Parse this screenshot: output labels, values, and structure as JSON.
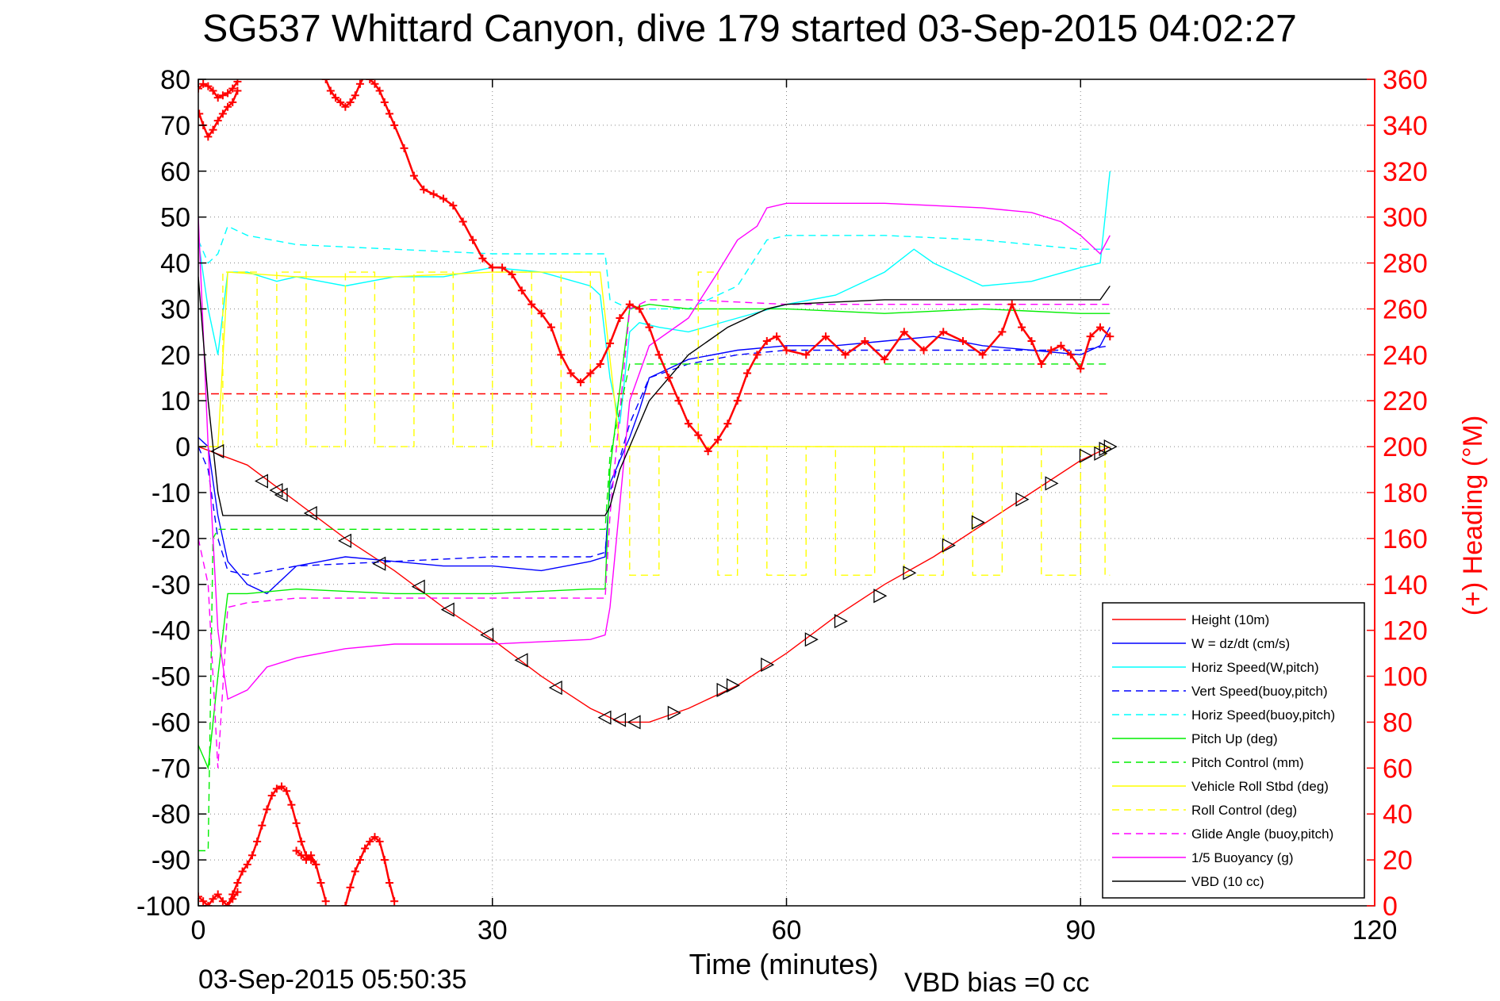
{
  "chart_data": {
    "type": "line",
    "title": "SG537 Whittard Canyon, dive 179 started 03-Sep-2015 04:02:27",
    "xlabel": "Time (minutes)",
    "ylabel": "",
    "y2label": "(+) Heading (°M)",
    "xlim": [
      0,
      120
    ],
    "ylim": [
      -100,
      80
    ],
    "y2lim": [
      0,
      360
    ],
    "xticks": [
      0,
      30,
      60,
      90,
      120
    ],
    "yticks": [
      80,
      70,
      60,
      50,
      40,
      30,
      20,
      10,
      0,
      -10,
      -20,
      -30,
      -40,
      -50,
      -60,
      -70,
      -80,
      -90,
      -100
    ],
    "y2ticks": [
      360,
      340,
      320,
      300,
      280,
      260,
      240,
      220,
      200,
      180,
      160,
      140,
      120,
      100,
      80,
      60,
      40,
      20,
      0
    ],
    "grid": true,
    "legend_position": "bottom-right",
    "footer_left": "03-Sep-2015 05:50:35",
    "footer_right": "VBD bias =0 cc",
    "colors": {
      "red": "#ff0000",
      "blue": "#0000ff",
      "cyan": "#00ffff",
      "green": "#00ee00",
      "yellow": "#ffff00",
      "magenta": "#ff00ff",
      "black": "#000000"
    },
    "series": [
      {
        "name": "Height (10m)",
        "color": "#ff0000",
        "dash": false,
        "x": [
          0,
          5,
          10,
          15,
          20,
          25,
          30,
          35,
          40,
          43,
          46,
          50,
          55,
          60,
          65,
          70,
          75,
          80,
          85,
          90,
          93
        ],
        "y": [
          0,
          -4,
          -12,
          -20,
          -27,
          -35,
          -42,
          -50,
          -57,
          -60,
          -60,
          -57,
          -52,
          -45,
          -37,
          -30,
          -24,
          -17,
          -10,
          -3,
          0
        ]
      },
      {
        "name": "W = dz/dt (cm/s)",
        "color": "#0000ff",
        "dash": false,
        "x": [
          0,
          1,
          2,
          3,
          5,
          7,
          10,
          15,
          20,
          25,
          30,
          35,
          40,
          41.5,
          42,
          43,
          44,
          45,
          46,
          48,
          50,
          55,
          60,
          65,
          70,
          75,
          80,
          85,
          90,
          92,
          93
        ],
        "y": [
          2,
          0,
          -15,
          -25,
          -30,
          -32,
          -26,
          -24,
          -25,
          -26,
          -26,
          -27,
          -25,
          -24,
          -8,
          -3,
          2,
          8,
          15,
          17,
          19,
          21,
          22,
          22,
          23,
          24,
          22,
          21,
          20,
          22,
          26
        ]
      },
      {
        "name": "Horiz Speed(W,pitch)",
        "color": "#00ffff",
        "dash": false,
        "x": [
          0,
          1,
          2,
          3,
          5,
          8,
          10,
          15,
          20,
          25,
          30,
          35,
          40,
          41,
          42,
          43,
          44,
          45,
          47,
          50,
          55,
          60,
          65,
          70,
          73,
          75,
          80,
          85,
          90,
          92,
          93
        ],
        "y": [
          45,
          30,
          20,
          38,
          38,
          36,
          37,
          35,
          37,
          37,
          39,
          38,
          35,
          33,
          15,
          5,
          25,
          27,
          26,
          25,
          28,
          31,
          33,
          38,
          43,
          40,
          35,
          36,
          39,
          40,
          60
        ]
      },
      {
        "name": "Vert Speed(buoy,pitch)",
        "color": "#0000ff",
        "dash": true,
        "x": [
          0,
          1,
          2,
          3,
          5,
          10,
          20,
          30,
          40,
          41.5,
          42,
          44,
          46,
          50,
          55,
          60,
          70,
          80,
          90,
          93
        ],
        "y": [
          0,
          -5,
          -20,
          -27,
          -28,
          -26,
          -25,
          -24,
          -24,
          -23,
          -10,
          5,
          15,
          18,
          20,
          21,
          21,
          21,
          21,
          22
        ]
      },
      {
        "name": "Horiz Speed(buoy,pitch)",
        "color": "#00ffff",
        "dash": true,
        "x": [
          0,
          1,
          2,
          3,
          5,
          10,
          20,
          30,
          40,
          41.5,
          42,
          44,
          46,
          50,
          55,
          58,
          60,
          70,
          80,
          85,
          90,
          93
        ],
        "y": [
          45,
          40,
          42,
          48,
          46,
          44,
          43,
          42,
          42,
          42,
          32,
          30,
          30,
          30,
          35,
          45,
          46,
          46,
          45,
          44,
          43,
          43
        ]
      },
      {
        "name": "Pitch Up (deg)",
        "color": "#00ee00",
        "dash": false,
        "x": [
          0,
          1,
          2,
          3,
          5,
          10,
          20,
          30,
          40,
          41.5,
          42,
          44,
          46,
          50,
          55,
          60,
          70,
          80,
          90,
          93
        ],
        "y": [
          -65,
          -70,
          -50,
          -32,
          -32,
          -31,
          -32,
          -32,
          -31,
          -31,
          -5,
          30,
          31,
          30,
          30,
          30,
          29,
          30,
          29,
          29
        ]
      },
      {
        "name": "Pitch Control (mm)",
        "color": "#00ee00",
        "dash": true,
        "x": [
          0,
          1,
          1.5,
          2,
          3,
          5,
          10,
          20,
          30,
          40,
          41.5,
          42,
          44,
          46,
          50,
          60,
          70,
          80,
          90,
          93
        ],
        "y": [
          -88,
          -88,
          -20,
          -18,
          -18,
          -18,
          -18,
          -18,
          -18,
          -18,
          -18,
          -2,
          18,
          18,
          18,
          18,
          18,
          18,
          18,
          18
        ]
      },
      {
        "name": "Vehicle Roll Stbd (deg)",
        "color": "#ffff00",
        "dash": false,
        "x": [
          0,
          2,
          3,
          10,
          20,
          30,
          40,
          41,
          43,
          44,
          45,
          50,
          60,
          70,
          80,
          90,
          93
        ],
        "y": [
          0,
          0,
          38,
          37,
          37,
          38,
          38,
          38,
          0,
          0,
          0,
          0,
          0,
          0,
          0,
          0,
          0
        ]
      },
      {
        "name": "Roll Control (deg)",
        "color": "#ffff00",
        "dash": true,
        "x": [
          0,
          2.5,
          2.5,
          6,
          6,
          8,
          8,
          11,
          11,
          15,
          15,
          18,
          18,
          22,
          22,
          26,
          26,
          30,
          30,
          34,
          34,
          37,
          37,
          40,
          40,
          41.5,
          41.5,
          44,
          44,
          47,
          47,
          51,
          51,
          53,
          53,
          55,
          55,
          58,
          58,
          62,
          62,
          65,
          65,
          69,
          69,
          72,
          72,
          76,
          76,
          79,
          79,
          82,
          82,
          86,
          86,
          90,
          90,
          92.5,
          92.5,
          93
        ],
        "y": [
          0,
          0,
          38,
          38,
          0,
          0,
          38,
          38,
          0,
          0,
          38,
          38,
          0,
          0,
          38,
          38,
          0,
          0,
          38,
          38,
          0,
          0,
          38,
          38,
          0,
          0,
          0,
          0,
          -28,
          -28,
          0,
          0,
          38,
          38,
          -28,
          -28,
          0,
          0,
          -28,
          -28,
          0,
          0,
          -28,
          -28,
          0,
          0,
          -28,
          -28,
          0,
          0,
          -28,
          -28,
          0,
          0,
          -28,
          -28,
          0,
          0,
          -28,
          -28
        ]
      },
      {
        "name": "Glide Angle (buoy,pitch)",
        "color": "#ff00ff",
        "dash": true,
        "x": [
          0,
          1,
          2,
          3,
          5,
          10,
          20,
          30,
          40,
          41.5,
          42,
          44,
          46,
          50,
          60,
          70,
          80,
          90,
          93
        ],
        "y": [
          -20,
          -30,
          -70,
          -35,
          -34,
          -33,
          -33,
          -33,
          -33,
          -33,
          -15,
          30,
          32,
          32,
          31,
          31,
          31,
          31,
          31
        ]
      },
      {
        "name": "1/5 Buoyancy (g)",
        "color": "#ff00ff",
        "dash": false,
        "x": [
          0,
          1,
          2,
          3,
          5,
          7,
          10,
          15,
          20,
          30,
          40,
          41.5,
          42,
          44,
          46,
          50,
          53,
          55,
          57,
          58,
          60,
          65,
          70,
          80,
          85,
          88,
          90,
          92,
          93
        ],
        "y": [
          50,
          0,
          -40,
          -55,
          -53,
          -48,
          -46,
          -44,
          -43,
          -43,
          -42,
          -41,
          -35,
          10,
          22,
          28,
          38,
          45,
          48,
          52,
          53,
          53,
          53,
          52,
          51,
          49,
          46,
          42,
          46
        ]
      },
      {
        "name": "VBD (10 cc)",
        "color": "#000000",
        "dash": false,
        "x": [
          0,
          1,
          2,
          2.5,
          3,
          41.5,
          42,
          43,
          44,
          46,
          48,
          50,
          52,
          54,
          56,
          58,
          60,
          70,
          80,
          90,
          92,
          93
        ],
        "y": [
          37,
          10,
          -10,
          -15,
          -15,
          -15,
          -13,
          -5,
          0,
          10,
          15,
          20,
          23,
          26,
          28,
          30,
          31,
          32,
          32,
          32,
          32,
          35
        ]
      }
    ],
    "heading": {
      "name": "(+) Heading",
      "axis": "right",
      "color": "#ff0000",
      "marker": "+",
      "segments": [
        {
          "x": [
            0,
            0.5,
            1,
            1.5,
            2,
            2.5,
            3,
            3.5,
            4
          ],
          "y": [
            356,
            358,
            357,
            355,
            352,
            353,
            354,
            356,
            359
          ]
        },
        {
          "x": [
            0.1,
            0.5,
            1,
            1.5,
            2,
            2.5,
            3,
            3.5,
            4
          ],
          "y": [
            345,
            340,
            335,
            338,
            342,
            345,
            348,
            350,
            355
          ]
        },
        {
          "x": [
            13,
            13.5,
            14,
            14.5,
            15,
            15.5,
            16,
            16.5,
            17,
            17.5,
            18,
            18.5,
            19,
            19.5,
            20,
            21,
            22,
            23,
            24,
            25,
            26,
            27,
            28,
            29,
            30,
            31,
            32,
            33,
            34,
            35,
            36,
            37,
            38,
            39,
            40,
            41,
            42,
            43,
            44,
            45,
            46,
            47,
            48,
            49,
            50,
            51,
            52,
            53,
            54,
            55,
            56,
            57,
            58,
            59,
            60,
            62,
            64,
            66,
            68,
            70,
            72,
            74,
            76,
            78,
            80,
            82,
            83,
            84,
            85,
            86,
            87,
            88,
            89,
            90,
            91,
            92,
            93
          ],
          "y": [
            360,
            355,
            352,
            350,
            348,
            350,
            353,
            358,
            362,
            360,
            358,
            355,
            350,
            345,
            340,
            330,
            318,
            312,
            310,
            308,
            305,
            298,
            290,
            282,
            278,
            278,
            275,
            268,
            262,
            258,
            252,
            240,
            232,
            228,
            232,
            236,
            245,
            256,
            262,
            260,
            252,
            240,
            230,
            220,
            210,
            205,
            198,
            203,
            210,
            220,
            232,
            240,
            246,
            248,
            242,
            240,
            248,
            240,
            246,
            238,
            250,
            242,
            250,
            246,
            240,
            250,
            262,
            252,
            246,
            236,
            242,
            244,
            240,
            234,
            248,
            252,
            248
          ]
        },
        {
          "x": [
            0,
            0.5,
            1,
            1.5,
            2,
            2.5,
            3,
            3.5,
            4
          ],
          "y": [
            4,
            2,
            0,
            3,
            5,
            2,
            0,
            3,
            6
          ]
        },
        {
          "x": [
            3,
            3.5,
            4,
            4.5,
            5,
            5.5,
            6,
            6.5,
            7,
            7.5,
            8,
            8.5,
            9,
            9.5,
            10,
            10.5,
            11,
            11.5,
            12
          ],
          "y": [
            0,
            5,
            10,
            15,
            18,
            22,
            28,
            35,
            42,
            48,
            51,
            52,
            50,
            44,
            36,
            28,
            22,
            20,
            18
          ]
        },
        {
          "x": [
            10,
            10.5,
            11,
            11.5,
            12,
            12.5,
            13
          ],
          "y": [
            24,
            22,
            20,
            22,
            18,
            10,
            2
          ]
        },
        {
          "x": [
            15,
            15.5,
            16,
            16.5,
            17,
            17.5,
            18,
            18.5,
            19,
            19.5,
            20
          ],
          "y": [
            0,
            8,
            15,
            20,
            25,
            28,
            30,
            28,
            20,
            10,
            2
          ]
        }
      ]
    },
    "dive_markers": {
      "x": [
        2,
        6.5,
        8,
        8.5,
        11.5,
        15,
        18.5,
        22.5,
        25.5,
        29.5,
        33,
        36.5,
        41.5,
        43,
        44.5,
        48.5,
        53.5,
        54.5,
        58,
        62.5,
        65.5,
        69.5,
        72.5,
        76.5,
        79.5,
        84,
        87,
        90.5,
        92,
        92.5,
        93
      ],
      "y": [
        -1,
        -7.5,
        -9.5,
        -10.5,
        -14.5,
        -20.5,
        -25.5,
        -30.5,
        -35.5,
        -41,
        -46.5,
        -52.5,
        -59,
        -59.5,
        -60,
        -58,
        -53,
        -52,
        -47.5,
        -42,
        -38,
        -32.5,
        -27.5,
        -21.5,
        -16.5,
        -11.5,
        -8,
        -2,
        -1.5,
        -0.5,
        0
      ]
    },
    "threshold_line": {
      "color": "#ff0000",
      "y": 11.5,
      "x": [
        0,
        93
      ]
    }
  }
}
